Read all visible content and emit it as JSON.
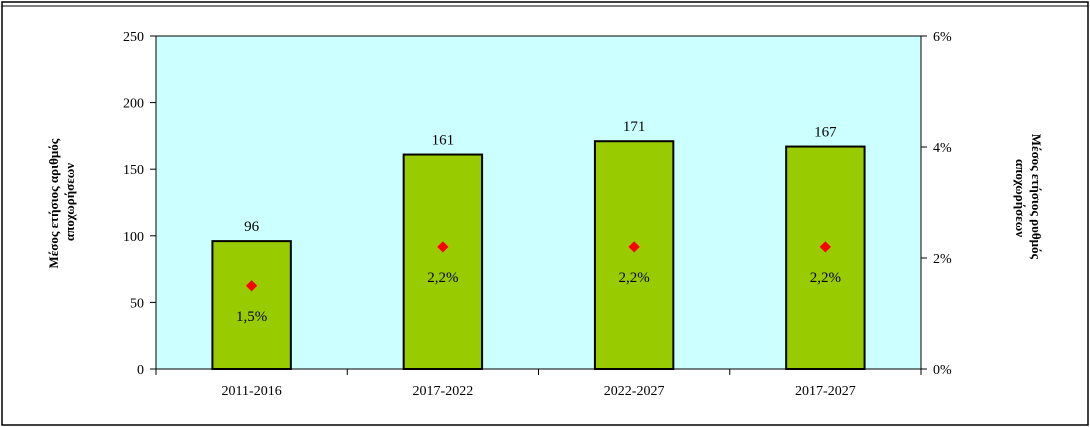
{
  "chart_data": {
    "type": "bar",
    "categories": [
      "2011-2016",
      "2017-2022",
      "2022-2027",
      "2017-2027"
    ],
    "series": [
      {
        "name": "Μέσος ετήσιος αριθμός αποχωρήσεων",
        "type": "bar",
        "axis": "left",
        "values": [
          96,
          161,
          171,
          167
        ],
        "labels": [
          "96",
          "161",
          "171",
          "167"
        ],
        "color": "#99cc00"
      },
      {
        "name": "Μέσος ετήσιος ρυθμός αποχωρήσεων",
        "type": "scatter",
        "axis": "right",
        "values": [
          0.015,
          0.022,
          0.022,
          0.022
        ],
        "labels": [
          "1,5%",
          "2,2%",
          "2,2%",
          "2,2%"
        ],
        "color": "#ff0000"
      }
    ],
    "ylabel_lines": [
      "Μέσος ετήσιος αριθμός",
      "αποχωρήσεων"
    ],
    "y2label_lines": [
      "Μέσος ετήσιος ρυθμός",
      "αποχωρήσεων"
    ],
    "ylim": [
      0,
      250
    ],
    "yticks": [
      0,
      50,
      100,
      150,
      200,
      250
    ],
    "y2lim": [
      0,
      0.06
    ],
    "y2ticks": [
      0,
      0.02,
      0.04,
      0.06
    ],
    "y2tick_labels": [
      "0%",
      "2%",
      "4%",
      "6%"
    ],
    "plot_background": "#ccffff",
    "grid": false
  }
}
